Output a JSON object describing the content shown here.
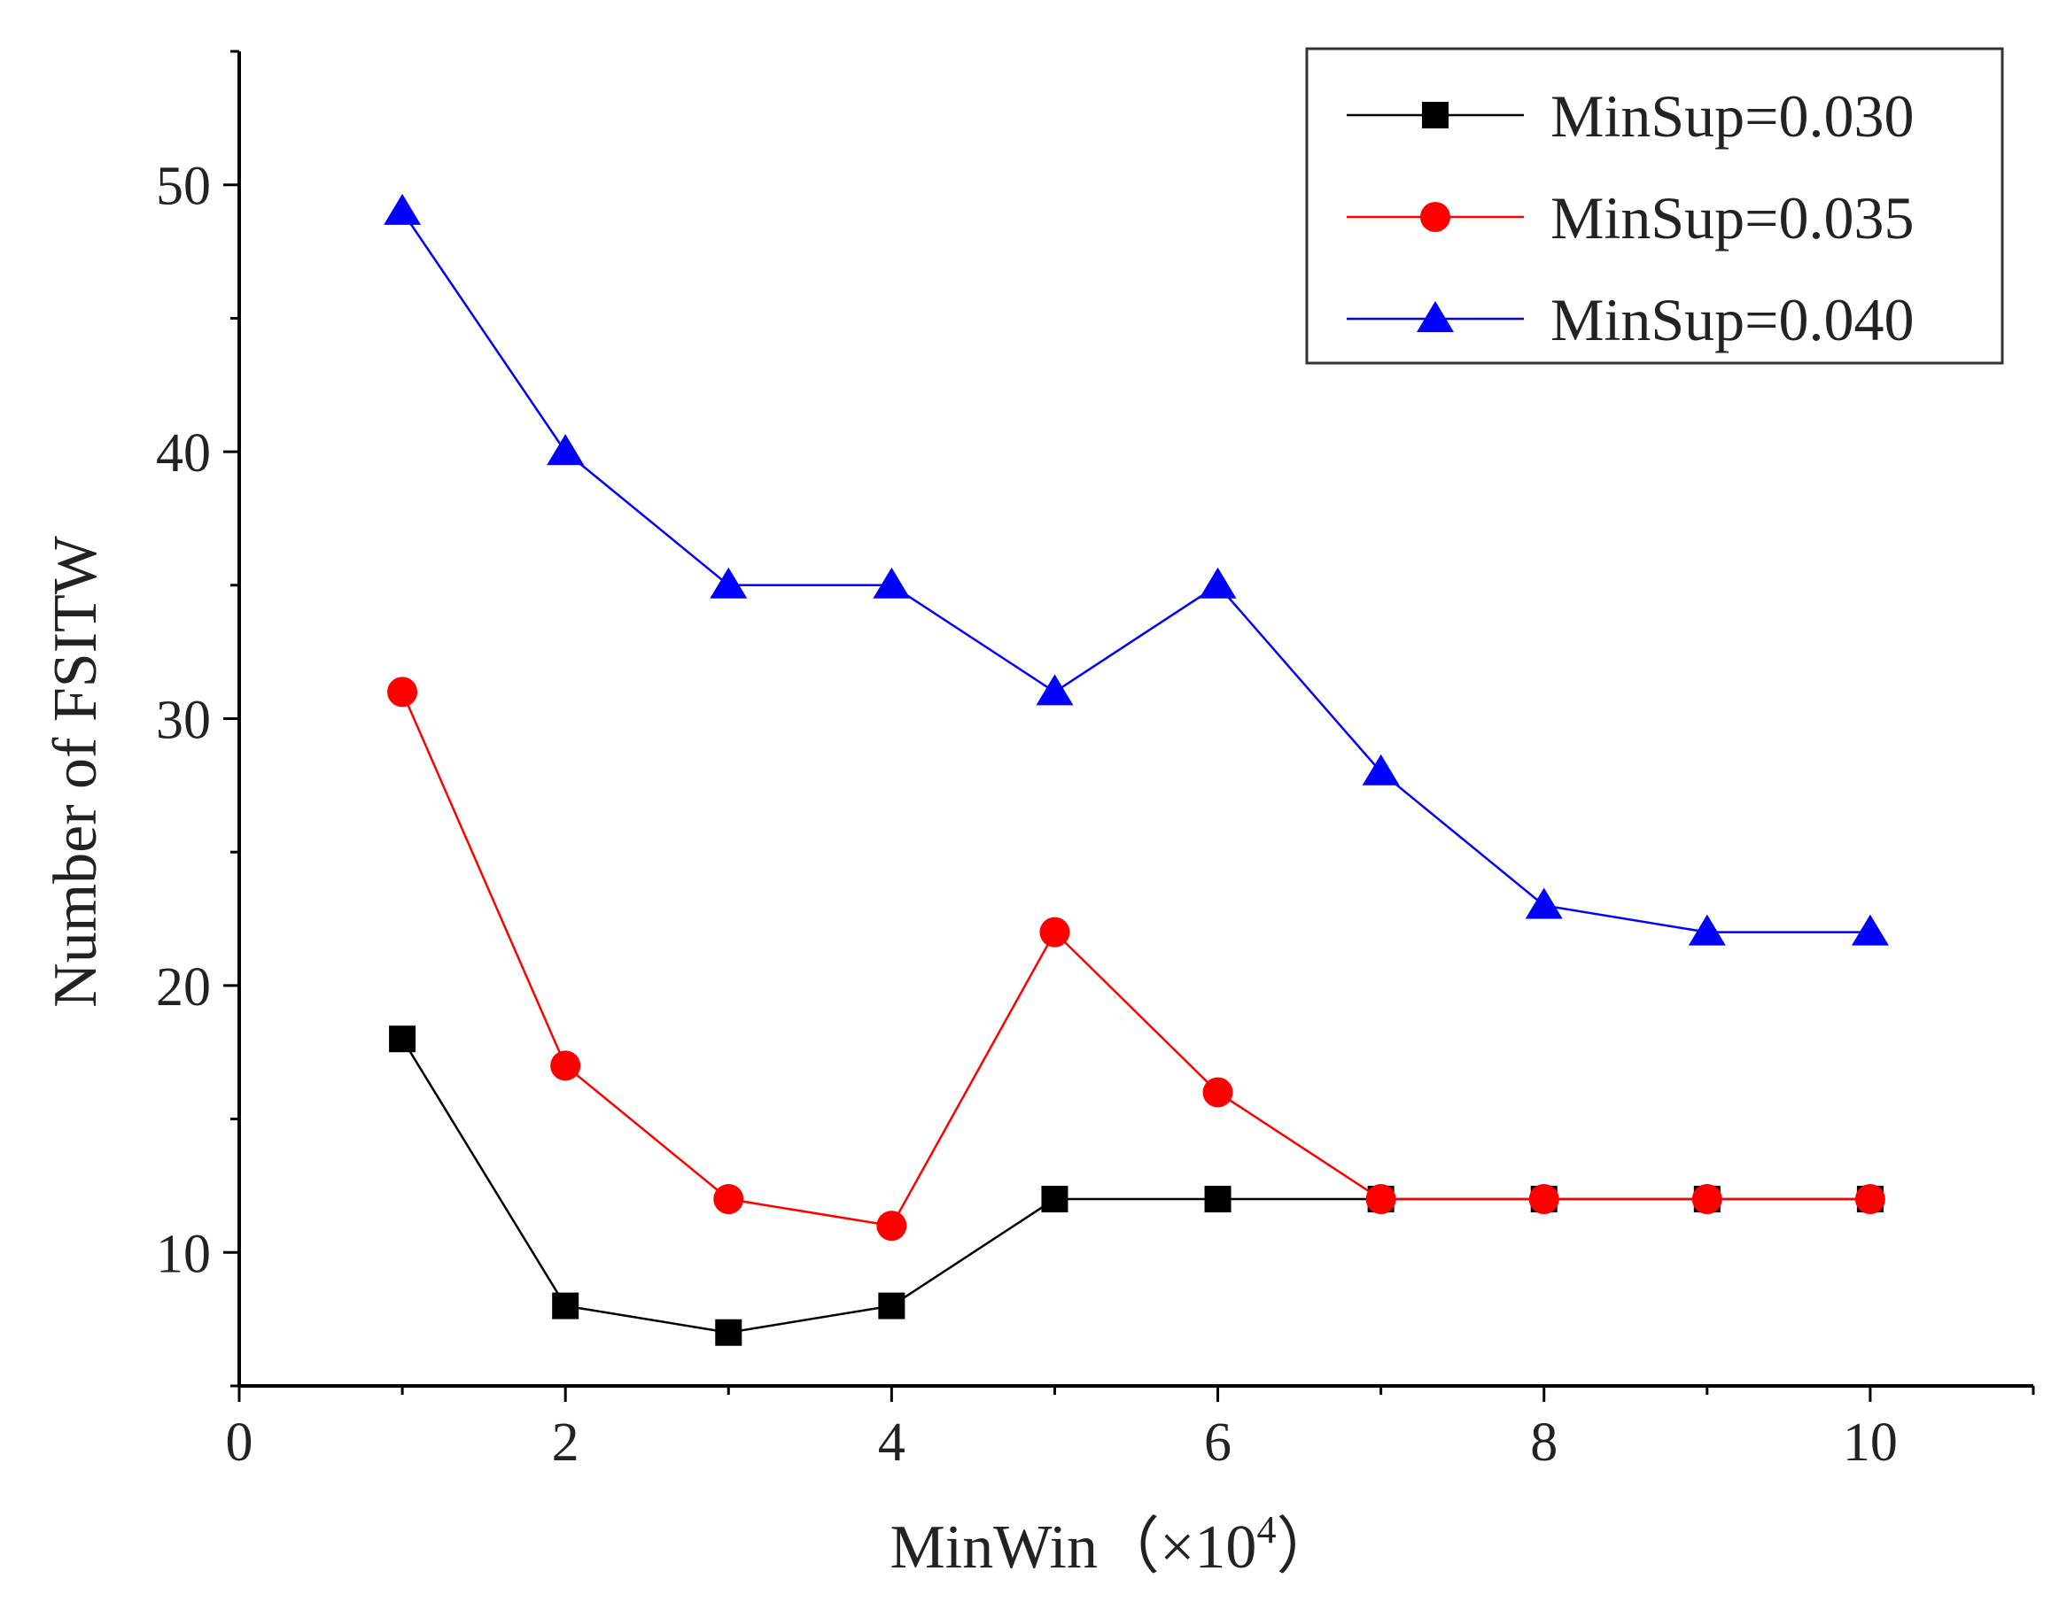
{
  "chart_data": {
    "type": "line",
    "title": "",
    "xlabel": "MinWin（×10",
    "xlabel_sup": "4",
    "xlabel_close": "）",
    "ylabel": "Number of FSITW",
    "xlim": [
      0,
      11
    ],
    "ylim": [
      5,
      55
    ],
    "x_ticks": [
      0,
      2,
      4,
      6,
      8,
      10
    ],
    "x_tick_labels": [
      "0",
      "2",
      "4",
      "6",
      "8",
      "10"
    ],
    "y_ticks": [
      10,
      20,
      30,
      40,
      50
    ],
    "y_tick_labels": [
      "10",
      "20",
      "30",
      "40",
      "50"
    ],
    "grid": false,
    "legend_position": "top-right",
    "x": [
      1,
      2,
      3,
      4,
      5,
      6,
      7,
      8,
      9,
      10
    ],
    "series": [
      {
        "name": "MinSup=0.030",
        "color": "#000000",
        "marker": "square",
        "values": [
          18,
          8,
          7,
          8,
          12,
          12,
          12,
          12,
          12,
          12
        ]
      },
      {
        "name": "MinSup=0.035",
        "color": "#ff0000",
        "marker": "circle",
        "values": [
          31,
          17,
          12,
          11,
          22,
          16,
          12,
          12,
          12,
          12
        ]
      },
      {
        "name": "MinSup=0.040",
        "color": "#0000ff",
        "marker": "triangle",
        "values": [
          49,
          40,
          35,
          35,
          31,
          35,
          28,
          23,
          22,
          22
        ]
      }
    ]
  }
}
